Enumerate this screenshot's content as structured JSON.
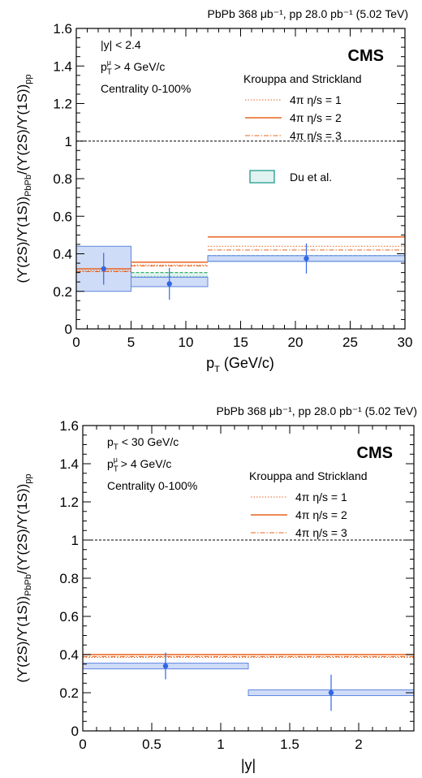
{
  "colors": {
    "data": "#3366e6",
    "box_fill": "#cfdcf7",
    "box_stroke": "#5f85e0",
    "model_line": "#e8641f",
    "du_teal": "#3aa89a",
    "du_green": "#33b26b"
  },
  "chart_data": [
    {
      "type": "scatter",
      "header": "PbPb 368 μb⁻¹, pp 28.0 pb⁻¹ (5.02 TeV)",
      "experiment": "CMS",
      "xlabel": "p_T  (GeV/c)",
      "ylabel": "(ϒ(2S)/ϒ(1S))_PbPb/(ϒ(2S)/ϒ(1S))_pp",
      "xlim": [
        0,
        30
      ],
      "ylim": [
        0,
        1.6
      ],
      "xticks": [
        "0",
        "5",
        "10",
        "15",
        "20",
        "25",
        "30"
      ],
      "yticks": [
        "0",
        "0.2",
        "0.4",
        "0.6",
        "0.8",
        "1",
        "1.2",
        "1.4",
        "1.6"
      ],
      "cuts": [
        "|y| < 2.4",
        "p_T^μ > 4 GeV/c",
        "Centrality 0-100%"
      ],
      "legend_title": "Krouppa and Strickland",
      "legend_entries": [
        "4π η/s = 1",
        "4π η/s = 2",
        "4π η/s = 3",
        "Du et al."
      ],
      "reference_line": 1,
      "points": [
        {
          "x": 2.5,
          "xlow": 0,
          "xhigh": 5,
          "y": 0.32,
          "stat": 0.085,
          "syst_low": 0.2,
          "syst_high": 0.44
        },
        {
          "x": 8.5,
          "xlow": 5,
          "xhigh": 12,
          "y": 0.24,
          "stat": 0.085,
          "syst_low": 0.225,
          "syst_high": 0.275
        },
        {
          "x": 21,
          "xlow": 12,
          "xhigh": 30,
          "y": 0.375,
          "stat": 0.08,
          "syst_low": 0.36,
          "syst_high": 0.39
        }
      ],
      "models": [
        {
          "name": "4π η/s = 1",
          "bins": [
            [
              0,
              5,
              0.31
            ],
            [
              5,
              12,
              0.34
            ],
            [
              12,
              30,
              0.44
            ]
          ]
        },
        {
          "name": "4π η/s = 2",
          "bins": [
            [
              0,
              5,
              0.32
            ],
            [
              5,
              12,
              0.355
            ],
            [
              12,
              30,
              0.49
            ]
          ]
        },
        {
          "name": "4π η/s = 3",
          "bins": [
            [
              0,
              5,
              0.305
            ],
            [
              5,
              12,
              0.335
            ],
            [
              12,
              30,
              0.42
            ]
          ]
        }
      ],
      "du_et_al": [
        [
          0,
          5,
          0.25,
          0.29
        ],
        [
          5,
          12,
          0.26,
          0.3
        ],
        [
          12,
          30,
          0.36,
          0.39
        ]
      ]
    },
    {
      "type": "scatter",
      "header": "PbPb 368 μb⁻¹, pp 28.0 pb⁻¹ (5.02 TeV)",
      "experiment": "CMS",
      "xlabel": "|y|",
      "ylabel": "(ϒ(2S)/ϒ(1S))_PbPb/(ϒ(2S)/ϒ(1S))_pp",
      "xlim": [
        0,
        2.4
      ],
      "ylim": [
        0,
        1.6
      ],
      "xticks": [
        "0",
        "0.5",
        "1",
        "1.5",
        "2"
      ],
      "yticks": [
        "0",
        "0.2",
        "0.4",
        "0.6",
        "0.8",
        "1",
        "1.2",
        "1.4",
        "1.6"
      ],
      "cuts": [
        "p_T < 30 GeV/c",
        "p_T^μ > 4 GeV/c",
        "Centrality 0-100%"
      ],
      "legend_title": "Krouppa and Strickland",
      "legend_entries": [
        "4π η/s = 1",
        "4π η/s = 2",
        "4π η/s = 3"
      ],
      "reference_line": 1,
      "points": [
        {
          "x": 0.6,
          "xlow": 0,
          "xhigh": 1.2,
          "y": 0.34,
          "stat": 0.07,
          "syst_low": 0.325,
          "syst_high": 0.355
        },
        {
          "x": 1.8,
          "xlow": 1.2,
          "xhigh": 2.4,
          "y": 0.2,
          "stat": 0.095,
          "syst_low": 0.185,
          "syst_high": 0.215
        }
      ],
      "models": [
        {
          "name": "4π η/s = 1",
          "bins": [
            [
              0,
              2.4,
              0.385
            ]
          ]
        },
        {
          "name": "4π η/s = 2",
          "bins": [
            [
              0,
              2.4,
              0.4
            ]
          ]
        },
        {
          "name": "4π η/s = 3",
          "bins": [
            [
              0,
              2.4,
              0.39
            ]
          ]
        }
      ],
      "du_et_al": []
    }
  ]
}
